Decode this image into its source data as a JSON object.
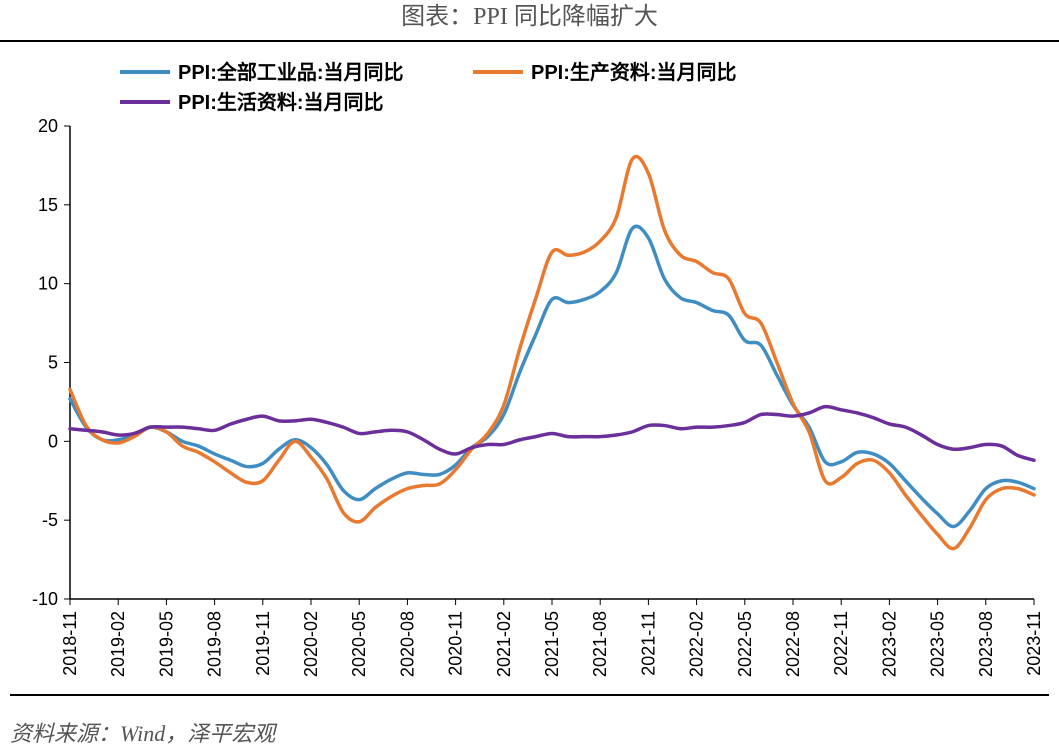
{
  "title": "图表：PPI 同比降幅扩大",
  "source": "资料来源：Wind，泽平宏观",
  "chart": {
    "type": "line",
    "background_color": "#ffffff",
    "axis_color": "#000000",
    "tick_font_size": 18,
    "legend_font_size": 20,
    "legend_font_weight": "bold",
    "line_width": 3.5,
    "ylim": [
      -10,
      20
    ],
    "ytick_step": 5,
    "yticks": [
      -10,
      -5,
      0,
      5,
      10,
      15,
      20
    ],
    "x_categories": [
      "2018-11",
      "2018-12",
      "2019-01",
      "2019-02",
      "2019-03",
      "2019-04",
      "2019-05",
      "2019-06",
      "2019-07",
      "2019-08",
      "2019-09",
      "2019-10",
      "2019-11",
      "2019-12",
      "2020-01",
      "2020-02",
      "2020-03",
      "2020-04",
      "2020-05",
      "2020-06",
      "2020-07",
      "2020-08",
      "2020-09",
      "2020-10",
      "2020-11",
      "2020-12",
      "2021-01",
      "2021-02",
      "2021-03",
      "2021-04",
      "2021-05",
      "2021-06",
      "2021-07",
      "2021-08",
      "2021-09",
      "2021-10",
      "2021-11",
      "2021-12",
      "2022-01",
      "2022-02",
      "2022-03",
      "2022-04",
      "2022-05",
      "2022-06",
      "2022-07",
      "2022-08",
      "2022-09",
      "2022-10",
      "2022-11",
      "2022-12",
      "2023-01",
      "2023-02",
      "2023-03",
      "2023-04",
      "2023-05",
      "2023-06",
      "2023-07",
      "2023-08",
      "2023-09",
      "2023-10",
      "2023-11"
    ],
    "x_tick_labels": [
      "2018-11",
      "2019-02",
      "2019-05",
      "2019-08",
      "2019-11",
      "2020-02",
      "2020-05",
      "2020-08",
      "2020-11",
      "2021-02",
      "2021-05",
      "2021-08",
      "2021-11",
      "2022-02",
      "2022-05",
      "2022-08",
      "2022-11",
      "2023-02",
      "2023-05",
      "2023-08",
      "2023-11"
    ],
    "x_tick_indices": [
      0,
      3,
      6,
      9,
      12,
      15,
      18,
      21,
      24,
      27,
      30,
      33,
      36,
      39,
      42,
      45,
      48,
      51,
      54,
      57,
      60
    ],
    "series": [
      {
        "name": "PPI:全部工业品:当月同比",
        "color": "#3f8dc2",
        "values": [
          2.7,
          0.9,
          0.1,
          0.1,
          0.4,
          0.9,
          0.6,
          0.0,
          -0.3,
          -0.8,
          -1.2,
          -1.6,
          -1.4,
          -0.5,
          0.1,
          -0.4,
          -1.5,
          -3.1,
          -3.7,
          -3.0,
          -2.4,
          -2.0,
          -2.1,
          -2.1,
          -1.5,
          -0.4,
          0.3,
          1.7,
          4.4,
          6.8,
          9.0,
          8.8,
          9.0,
          9.5,
          10.7,
          13.5,
          12.9,
          10.3,
          9.1,
          8.8,
          8.3,
          8.0,
          6.4,
          6.1,
          4.2,
          2.3,
          0.9,
          -1.3,
          -1.3,
          -0.7,
          -0.8,
          -1.4,
          -2.5,
          -3.6,
          -4.6,
          -5.4,
          -4.4,
          -3.0,
          -2.5,
          -2.6,
          -3.0
        ]
      },
      {
        "name": "PPI:生产资料:当月同比",
        "color": "#e8792f",
        "values": [
          3.3,
          1.0,
          0.1,
          -0.1,
          0.3,
          0.9,
          0.6,
          -0.3,
          -0.7,
          -1.3,
          -2.0,
          -2.6,
          -2.5,
          -1.2,
          0.0,
          -1.0,
          -2.4,
          -4.5,
          -5.1,
          -4.2,
          -3.5,
          -3.0,
          -2.8,
          -2.7,
          -1.8,
          -0.5,
          0.5,
          2.3,
          5.9,
          9.1,
          12.0,
          11.8,
          12.0,
          12.7,
          14.2,
          17.9,
          17.0,
          13.4,
          11.8,
          11.4,
          10.7,
          10.3,
          8.1,
          7.5,
          5.0,
          2.4,
          0.6,
          -2.5,
          -2.3,
          -1.4,
          -1.2,
          -2.0,
          -3.4,
          -4.7,
          -5.9,
          -6.8,
          -5.5,
          -3.7,
          -3.0,
          -3.0,
          -3.4
        ]
      },
      {
        "name": "PPI:生活资料:当月同比",
        "color": "#6a2f9b",
        "values": [
          0.8,
          0.7,
          0.6,
          0.4,
          0.5,
          0.9,
          0.9,
          0.9,
          0.8,
          0.7,
          1.1,
          1.4,
          1.6,
          1.3,
          1.3,
          1.4,
          1.2,
          0.9,
          0.5,
          0.6,
          0.7,
          0.6,
          0.1,
          -0.5,
          -0.8,
          -0.4,
          -0.2,
          -0.2,
          0.1,
          0.3,
          0.5,
          0.3,
          0.3,
          0.3,
          0.4,
          0.6,
          1.0,
          1.0,
          0.8,
          0.9,
          0.9,
          1.0,
          1.2,
          1.7,
          1.7,
          1.6,
          1.8,
          2.2,
          2.0,
          1.8,
          1.5,
          1.1,
          0.9,
          0.4,
          -0.2,
          -0.5,
          -0.4,
          -0.2,
          -0.3,
          -0.9,
          -1.2
        ]
      }
    ],
    "legend_rows": [
      [
        0,
        1
      ],
      [
        2
      ]
    ]
  }
}
